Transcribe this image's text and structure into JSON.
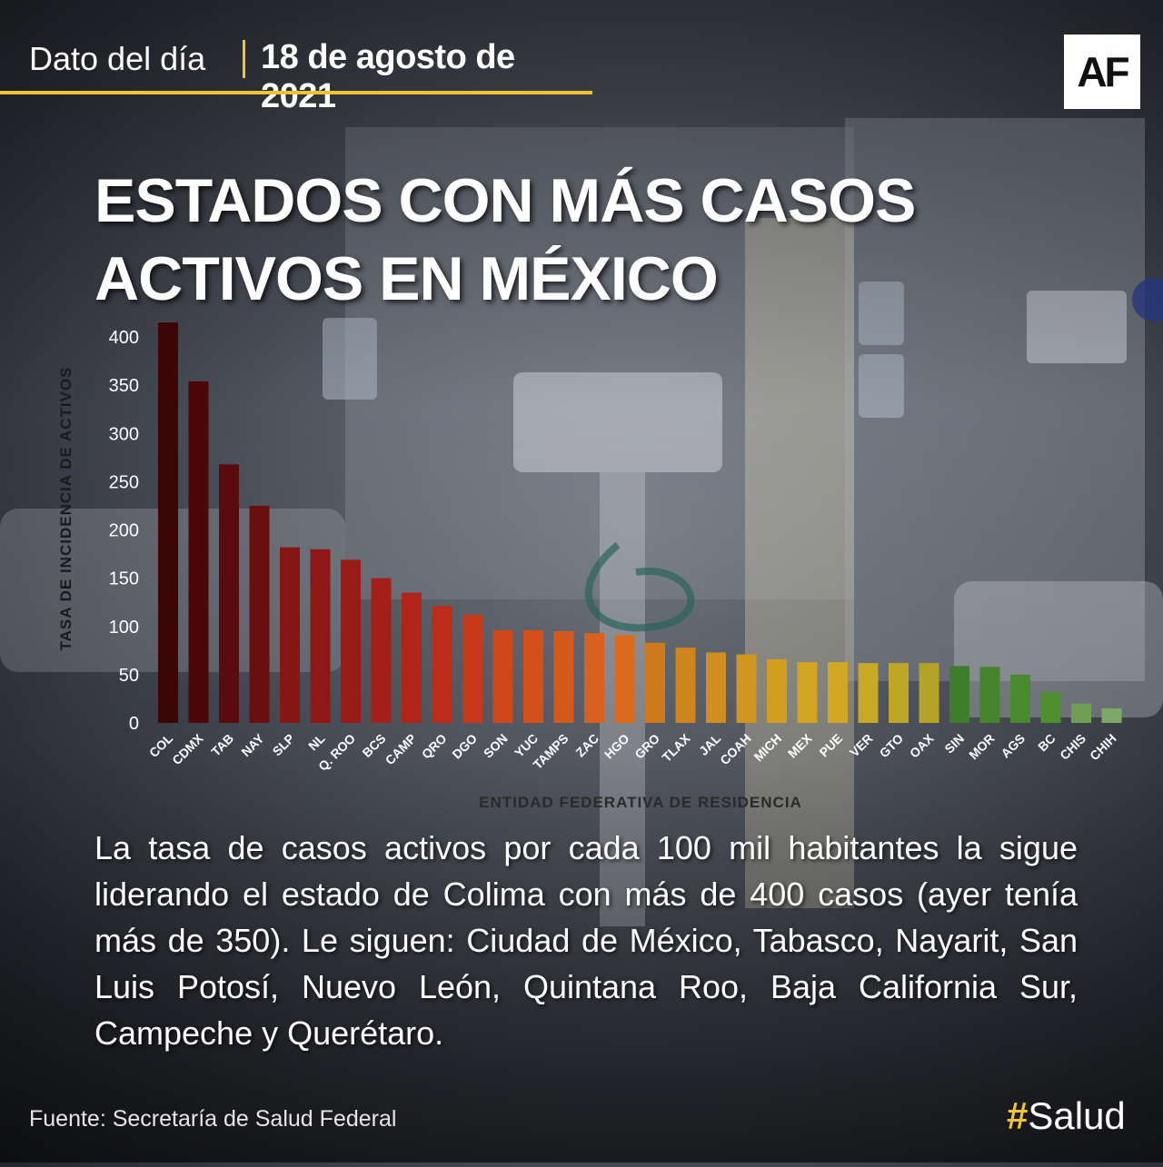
{
  "header": {
    "label": "Dato del día",
    "date": "18 de  agosto de 2021"
  },
  "logo": "AF",
  "title": [
    "ESTADOS CON MÁS CASOS",
    "ACTIVOS EN MÉXICO"
  ],
  "description": "La tasa de casos activos por cada 100 mil habitantes la sigue liderando el estado de Colima con más de 400 casos (ayer tenía más de 350). Le siguen: Ciudad de México, Tabasco, Nayarit, San Luis Potosí, Nuevo León, Quintana Roo, Baja California Sur, Campeche y Querétaro.",
  "source": "Fuente: Secretaría de Salud Federal",
  "hashtag": {
    "symbol": "#",
    "text": "Salud"
  },
  "colors": {
    "accent": "#f2c230"
  },
  "chart_data": {
    "type": "bar",
    "ylabel": "TASA DE INCIDENCIA DE ACTIVOS",
    "xlabel": "ENTIDAD FEDERATIVA DE RESIDENCIA",
    "ylim": [
      0,
      425
    ],
    "yticks": [
      0,
      50,
      100,
      150,
      200,
      250,
      300,
      350,
      400
    ],
    "grid": false,
    "categories": [
      "COL",
      "CDMX",
      "TAB",
      "NAY",
      "SLP",
      "NL",
      "Q. ROO",
      "BCS",
      "CAMP",
      "QRO",
      "DGO",
      "SON",
      "YUC",
      "TAMPS",
      "ZAC",
      "HGO",
      "GRO",
      "TLAX",
      "JAL",
      "COAH",
      "MICH",
      "MEX",
      "PUE",
      "VER",
      "GTO",
      "OAX",
      "SIN",
      "MOR",
      "AGS",
      "BC",
      "CHIS",
      "CHIH"
    ],
    "values": [
      415,
      354,
      268,
      225,
      182,
      180,
      169,
      150,
      135,
      121,
      112,
      96,
      96,
      95,
      93,
      91,
      83,
      78,
      73,
      71,
      66,
      63,
      63,
      62,
      62,
      62,
      59,
      58,
      50,
      32,
      20,
      15
    ],
    "colors": [
      "#3a0608",
      "#4a0809",
      "#5a0b0c",
      "#6a0e0f",
      "#851614",
      "#8e1815",
      "#971b16",
      "#a41f17",
      "#b02518",
      "#bb2d18",
      "#c63a19",
      "#cf471a",
      "#d4501b",
      "#d6591c",
      "#d8621d",
      "#da6b1e",
      "#cc7a1c",
      "#cf851d",
      "#d08e1e",
      "#d1961f",
      "#d29d20",
      "#d3a422",
      "#d1a824",
      "#c9a924",
      "#bfa725",
      "#b3a326",
      "#3f7d2c",
      "#45832d",
      "#4a8a2e",
      "#4f8f30",
      "#6f9f55",
      "#7fa868"
    ]
  }
}
